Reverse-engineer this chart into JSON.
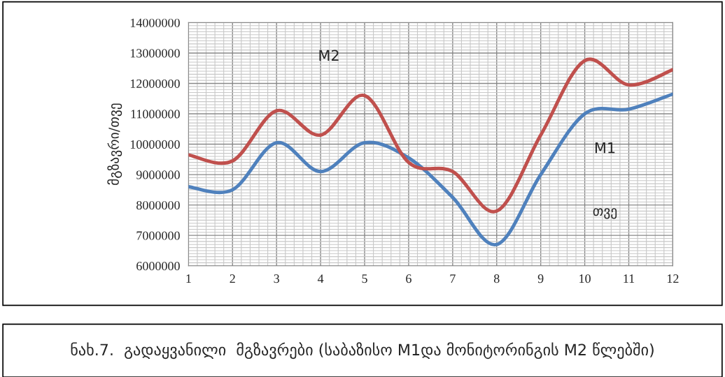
{
  "chart_data": {
    "type": "line",
    "title": "ნახ.7.  გადაყვანილი  მგზავრები (საბაზისო M1და მონიტორინგის M2 წლებში)",
    "ylabel": "მგზავრი/თვე",
    "xlabel": "თვე",
    "x": [
      1,
      2,
      3,
      4,
      5,
      6,
      7,
      8,
      9,
      10,
      11,
      12
    ],
    "series": [
      {
        "name": "M1",
        "color": "#4f81bd",
        "values": [
          8600000,
          8500000,
          10050000,
          9100000,
          10050000,
          9550000,
          8250000,
          6700000,
          9000000,
          11000000,
          11150000,
          11650000
        ]
      },
      {
        "name": "M2",
        "color": "#c0504d",
        "values": [
          9650000,
          9450000,
          11100000,
          10300000,
          11600000,
          9400000,
          9100000,
          7800000,
          10300000,
          12750000,
          11950000,
          12450000
        ]
      }
    ],
    "xlim": [
      1,
      12
    ],
    "xticks": [
      1,
      2,
      3,
      4,
      5,
      6,
      7,
      8,
      9,
      10,
      11,
      12
    ],
    "ylim": [
      6000000,
      14000000
    ],
    "yticks": [
      6000000,
      7000000,
      8000000,
      9000000,
      10000000,
      11000000,
      12000000,
      13000000,
      14000000
    ],
    "grid": true,
    "legend": false,
    "marker": "none",
    "line_style": "solid"
  }
}
